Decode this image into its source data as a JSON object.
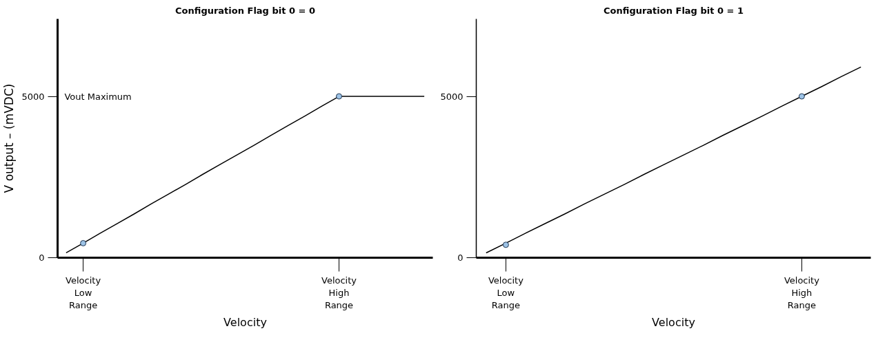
{
  "chart_data": [
    {
      "type": "line",
      "title": "Configuration Flag bit 0 = 0",
      "xlabel": "Velocity",
      "ylabel": "V output – (mVDC)",
      "categories": [
        null,
        "Velocity\nLow\nRange",
        null,
        null,
        null,
        null,
        null,
        null,
        null,
        null,
        null,
        null,
        null,
        null,
        null,
        null,
        "Velocity\nHigh\nRange",
        null,
        null,
        null,
        null,
        null
      ],
      "ylim": [
        0,
        7400
      ],
      "yticks": [
        0,
        5000
      ],
      "grid": false,
      "annotations": [
        "Vout Maximum"
      ],
      "series": [
        {
          "color": "#000000",
          "values": [
            150,
            450,
            760,
            1060,
            1360,
            1670,
            1970,
            2270,
            2580,
            2880,
            3180,
            3480,
            3790,
            4090,
            4390,
            4700,
            5000,
            5000,
            5000,
            5000,
            5000,
            5000
          ],
          "marker": "none"
        },
        {
          "type": "scatter",
          "color": "#9dc3e6",
          "values": [
            null,
            450,
            null,
            null,
            null,
            null,
            null,
            null,
            null,
            null,
            null,
            null,
            null,
            null,
            null,
            null,
            5000,
            null,
            null,
            null,
            null,
            null
          ],
          "marker": "circle"
        }
      ]
    },
    {
      "type": "line",
      "title": "Configuration Flag bit 0 = 1",
      "xlabel": "Velocity",
      "categories": [
        null,
        "Velocity\nLow\nRange",
        null,
        null,
        null,
        null,
        null,
        null,
        null,
        null,
        null,
        null,
        null,
        null,
        null,
        null,
        "Velocity\nHigh\nRange",
        null,
        null,
        null
      ],
      "ylim": [
        0,
        7400
      ],
      "yticks": [
        0,
        5000
      ],
      "grid": false,
      "series": [
        {
          "color": "#000000",
          "values": [
            150,
            450,
            760,
            1060,
            1360,
            1670,
            1970,
            2270,
            2580,
            2880,
            3180,
            3480,
            3790,
            4090,
            4390,
            4700,
            5000,
            5300,
            5610,
            5910
          ],
          "marker": "none"
        },
        {
          "type": "scatter",
          "color": "#9dc3e6",
          "values": [
            null,
            400,
            null,
            null,
            null,
            null,
            null,
            null,
            null,
            null,
            null,
            null,
            null,
            null,
            null,
            null,
            5000,
            null,
            null,
            null
          ],
          "marker": "circle"
        }
      ]
    }
  ]
}
